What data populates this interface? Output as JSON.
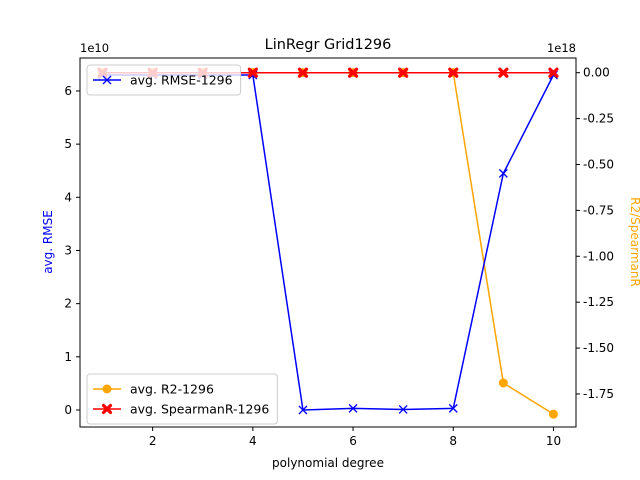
{
  "chart_data": {
    "type": "line",
    "title": "LinRegr Grid1296",
    "xlabel": "polynomial degree",
    "ylabel_left": "avg. RMSE",
    "ylabel_right": "R2/SpearmanR",
    "left_scale_label": "1e10",
    "right_scale_label": "1e18",
    "x": [
      1,
      2,
      3,
      4,
      5,
      6,
      7,
      8,
      9,
      10
    ],
    "xlim": [
      0.55,
      10.45
    ],
    "xticks": [
      2,
      4,
      6,
      8,
      10
    ],
    "ylim_left": [
      -0.32,
      6.62
    ],
    "yticks_left": [
      0,
      1,
      2,
      3,
      4,
      5,
      6
    ],
    "ylim_right": [
      -1.93,
      0.08
    ],
    "yticks_right": [
      0.0,
      -0.25,
      -0.5,
      -0.75,
      -1.0,
      -1.25,
      -1.5,
      -1.75
    ],
    "grid": false,
    "series": [
      {
        "name": "avg. RMSE-1296",
        "axis": "left",
        "color": "#0000ff",
        "marker": "x",
        "values": [
          6.3,
          6.3,
          6.3,
          6.3,
          0.0,
          0.03,
          0.01,
          0.03,
          4.45,
          6.3
        ]
      },
      {
        "name": "avg. R2-1296",
        "axis": "right",
        "color": "#ffa500",
        "marker": "o",
        "values": [
          0.0,
          0.0,
          0.0,
          0.0,
          0.0,
          0.0,
          0.0,
          0.0,
          -1.69,
          -1.86
        ]
      },
      {
        "name": "avg. SpearmanR-1296",
        "axis": "right",
        "color": "#ff0000",
        "marker": "X",
        "values": [
          0.0,
          0.0,
          0.0,
          0.0,
          0.0,
          0.0,
          0.0,
          0.0,
          0.0,
          0.0
        ]
      }
    ],
    "legend_left_placement": "upper-left",
    "legend_right_placement": "lower-left"
  }
}
